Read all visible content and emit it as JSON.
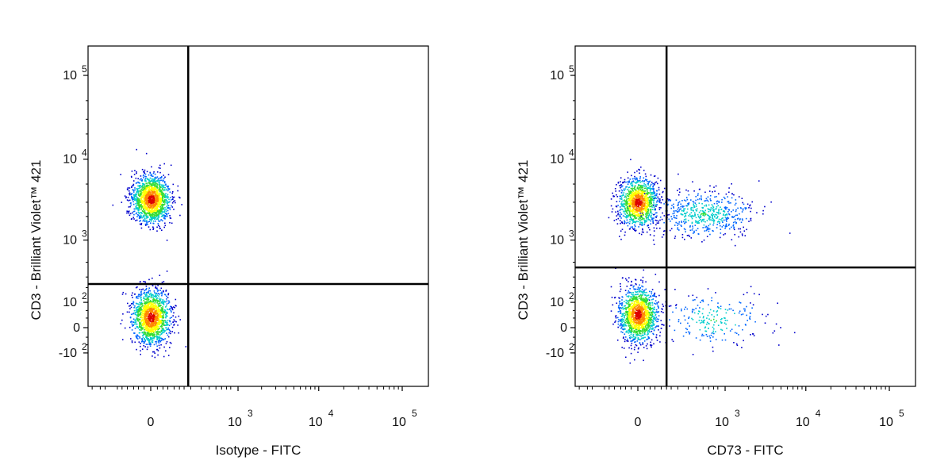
{
  "chart_data": [
    {
      "type": "scatter",
      "subtype": "flow-cytometry-density-dot-plot",
      "xlabel": "Isotype - FITC",
      "ylabel": "CD3 - Brilliant Violet™ 421",
      "x_scale": "biexponential",
      "y_scale": "biexponential",
      "x_ticks": [
        {
          "value": 0,
          "base": "0",
          "exp": ""
        },
        {
          "value": 1000,
          "base": "10",
          "exp": "3"
        },
        {
          "value": 10000,
          "base": "10",
          "exp": "4"
        },
        {
          "value": 100000,
          "base": "10",
          "exp": "5"
        }
      ],
      "y_ticks": [
        {
          "value": -100,
          "base": "-10",
          "exp": "2"
        },
        {
          "value": 0,
          "base": "0",
          "exp": ""
        },
        {
          "value": 100,
          "base": "10",
          "exp": "2"
        },
        {
          "value": 1000,
          "base": "10",
          "exp": "3"
        },
        {
          "value": 10000,
          "base": "10",
          "exp": "4"
        },
        {
          "value": 100000,
          "base": "10",
          "exp": "5"
        }
      ],
      "gates": {
        "x": 180,
        "y": 230
      },
      "populations": [
        {
          "x_center": 0,
          "y_center": 3300,
          "count": 1500
        },
        {
          "x_center": 0,
          "y_center": 35,
          "count": 1500
        }
      ],
      "colormap": [
        "#0000cc",
        "#0066ff",
        "#00cccc",
        "#33dd33",
        "#ffff00",
        "#ff8800",
        "#dd0000"
      ]
    },
    {
      "type": "scatter",
      "subtype": "flow-cytometry-density-dot-plot",
      "xlabel": "CD73 - FITC",
      "ylabel": "CD3 - Brilliant Violet™ 421",
      "x_scale": "biexponential",
      "y_scale": "biexponential",
      "x_ticks": [
        {
          "value": 0,
          "base": "0",
          "exp": ""
        },
        {
          "value": 1000,
          "base": "10",
          "exp": "3"
        },
        {
          "value": 10000,
          "base": "10",
          "exp": "4"
        },
        {
          "value": 100000,
          "base": "10",
          "exp": "5"
        }
      ],
      "y_ticks": [
        {
          "value": -100,
          "base": "-10",
          "exp": "2"
        },
        {
          "value": 0,
          "base": "0",
          "exp": ""
        },
        {
          "value": 100,
          "base": "10",
          "exp": "2"
        },
        {
          "value": 1000,
          "base": "10",
          "exp": "3"
        },
        {
          "value": 10000,
          "base": "10",
          "exp": "4"
        },
        {
          "value": 100000,
          "base": "10",
          "exp": "5"
        }
      ],
      "gates": {
        "x": 120,
        "y": 420
      },
      "populations": [
        {
          "x_center": 0,
          "y_center": 3000,
          "count": 1200
        },
        {
          "x_center": 500,
          "y_center": 2200,
          "count": 550
        },
        {
          "x_center": 0,
          "y_center": 45,
          "count": 1400
        },
        {
          "x_center": 700,
          "y_center": 25,
          "count": 220
        }
      ],
      "colormap": [
        "#0000cc",
        "#0066ff",
        "#00cccc",
        "#33dd33",
        "#ffff00",
        "#ff8800",
        "#dd0000"
      ]
    }
  ]
}
